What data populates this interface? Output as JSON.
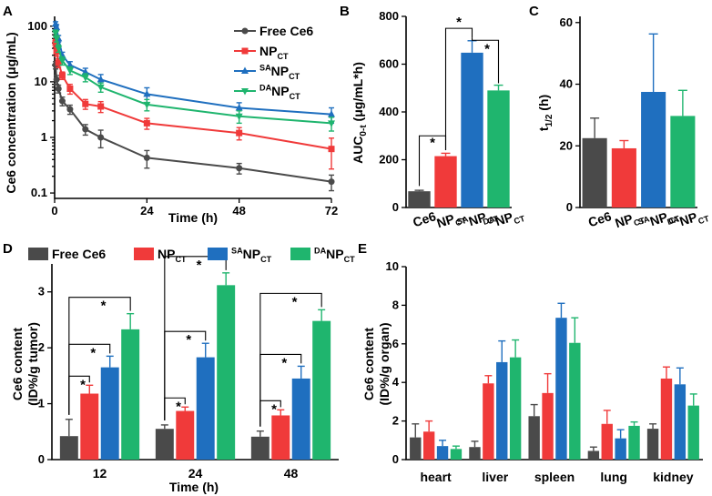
{
  "colors": {
    "gray": "#4a4a4a",
    "red": "#f03a3a",
    "blue": "#1f6fbf",
    "green": "#1fb56e"
  },
  "chart_data": [
    {
      "panel": "A",
      "type": "line",
      "yscale": "log",
      "xlabel": "Time (h)",
      "ylabel": "Ce6 concentration (μg/mL)",
      "xticks": [
        0,
        24,
        48,
        72
      ],
      "xlim": [
        0,
        72
      ],
      "yticks": [
        0.1,
        1,
        10,
        100
      ],
      "yticklabels": [
        "0.1",
        "1",
        "10",
        "100"
      ],
      "ylim": [
        0.08,
        150
      ],
      "x": [
        0.25,
        0.5,
        1,
        2,
        4,
        8,
        12,
        24,
        48,
        72
      ],
      "series": [
        {
          "name": "Free Ce6",
          "label_main": "Free Ce6",
          "label_sup": "",
          "label_sub": "",
          "color": "#4a4a4a",
          "marker": "circle",
          "values": [
            20,
            11,
            7.5,
            4.5,
            3.2,
            1.4,
            1.0,
            0.43,
            0.28,
            0.16
          ],
          "errors": [
            3,
            2,
            1.2,
            0.8,
            0.6,
            0.3,
            0.35,
            0.15,
            0.06,
            0.05
          ]
        },
        {
          "name": "NP_CT",
          "label_main": "NP",
          "label_sup": "",
          "label_sub": "CT",
          "color": "#f03a3a",
          "marker": "square",
          "values": [
            50,
            35,
            22,
            13,
            7.5,
            4.0,
            3.6,
            1.8,
            1.2,
            0.62
          ],
          "errors": [
            8,
            6,
            4,
            2,
            1.5,
            0.8,
            0.8,
            0.4,
            0.3,
            0.35
          ]
        },
        {
          "name": "SA_NP_CT",
          "label_main": "NP",
          "label_sup": "SA",
          "label_sub": "CT",
          "color": "#1f6fbf",
          "marker": "triangle-up",
          "values": [
            110,
            95,
            60,
            30,
            20,
            15,
            11,
            6.0,
            3.4,
            2.6
          ],
          "errors": [
            10,
            12,
            8,
            4,
            3,
            2.5,
            2.5,
            1.8,
            0.8,
            0.8
          ]
        },
        {
          "name": "DA_NP_CT",
          "label_main": "NP",
          "label_sup": "DA",
          "label_sub": "CT",
          "color": "#1fb56e",
          "marker": "triangle-down",
          "values": [
            75,
            60,
            40,
            24,
            16,
            12,
            8,
            3.9,
            2.4,
            1.8
          ],
          "errors": [
            10,
            8,
            6,
            4,
            2.5,
            2,
            1.5,
            0.9,
            0.6,
            0.5
          ]
        }
      ]
    },
    {
      "panel": "B",
      "type": "bar",
      "ylabel_main": "AUC",
      "ylabel_sub": "0-t",
      "ylabel_rest": " (μg/mL*h)",
      "categories": [
        "Ce6",
        "NP_CT",
        "SA_NP_CT",
        "DA_NP_CT"
      ],
      "cat_main": [
        "Ce6",
        "NP",
        "NP",
        "NP"
      ],
      "cat_sup": [
        "",
        "",
        "SA",
        "DA"
      ],
      "cat_sub": [
        "",
        "CT",
        "CT",
        "CT"
      ],
      "values": [
        68,
        215,
        648,
        490
      ],
      "errors": [
        4,
        12,
        50,
        22
      ],
      "yticks": [
        0,
        200,
        400,
        600,
        800
      ],
      "ylim": [
        0,
        800
      ],
      "significance": "*"
    },
    {
      "panel": "C",
      "type": "bar",
      "ylabel_main": "t",
      "ylabel_sub": "1/2",
      "ylabel_rest": " (h)",
      "categories": [
        "Ce6",
        "NP_CT",
        "SA_NP_CT",
        "DA_NP_CT"
      ],
      "cat_main": [
        "Ce6",
        "NP",
        "NP",
        "NP"
      ],
      "cat_sup": [
        "",
        "",
        "SA",
        "DA"
      ],
      "cat_sub": [
        "",
        "CT",
        "CT",
        "CT"
      ],
      "values": [
        22.5,
        19.2,
        37.5,
        29.7
      ],
      "errors": [
        6.5,
        2.5,
        18.8,
        8.3
      ],
      "yticks": [
        0,
        20,
        40,
        60
      ],
      "ylim": [
        0,
        62
      ]
    },
    {
      "panel": "D",
      "type": "bar",
      "xlabel": "Time (h)",
      "ylabel_line1": "Ce6 content",
      "ylabel_line2": "(ID%/g tumor)",
      "categories": [
        "12",
        "24",
        "48"
      ],
      "yticks": [
        0,
        1,
        2,
        3
      ],
      "ylim": [
        0,
        3.5
      ],
      "series": [
        {
          "name": "Free Ce6",
          "values": [
            0.42,
            0.55,
            0.41
          ],
          "errors": [
            0.3,
            0.07,
            0.1
          ]
        },
        {
          "name": "NP_CT",
          "values": [
            1.18,
            0.87,
            0.79
          ],
          "errors": [
            0.15,
            0.07,
            0.1
          ]
        },
        {
          "name": "SA_NP_CT",
          "values": [
            1.65,
            1.83,
            1.45
          ],
          "errors": [
            0.2,
            0.25,
            0.22
          ]
        },
        {
          "name": "DA_NP_CT",
          "values": [
            2.33,
            3.12,
            2.48
          ],
          "errors": [
            0.28,
            0.22,
            0.2
          ]
        }
      ],
      "significance": "*"
    },
    {
      "panel": "E",
      "type": "bar",
      "ylabel_line1": "Ce6 content",
      "ylabel_line2": "(ID%/g organ)",
      "categories": [
        "heart",
        "liver",
        "spleen",
        "lung",
        "kidney"
      ],
      "yticks": [
        0,
        2,
        4,
        6,
        8,
        10
      ],
      "ylim": [
        0,
        10
      ],
      "series": [
        {
          "name": "Free Ce6",
          "values": [
            1.15,
            0.65,
            2.25,
            0.45,
            1.6
          ],
          "errors": [
            0.7,
            0.3,
            0.6,
            0.2,
            0.25
          ]
        },
        {
          "name": "NP_CT",
          "values": [
            1.45,
            3.95,
            3.45,
            1.85,
            4.2
          ],
          "errors": [
            0.55,
            0.4,
            1.0,
            0.7,
            0.6
          ]
        },
        {
          "name": "SA_NP_CT",
          "values": [
            0.7,
            5.05,
            7.35,
            1.1,
            3.9
          ],
          "errors": [
            0.3,
            1.1,
            0.75,
            0.45,
            0.85
          ]
        },
        {
          "name": "DA_NP_CT",
          "values": [
            0.55,
            5.3,
            6.05,
            1.75,
            2.8
          ],
          "errors": [
            0.15,
            0.9,
            1.3,
            0.2,
            0.6
          ]
        }
      ]
    }
  ],
  "legendD": [
    {
      "main": "Free Ce6",
      "sup": "",
      "sub": ""
    },
    {
      "main": "NP",
      "sup": "",
      "sub": "CT"
    },
    {
      "main": "NP",
      "sup": "SA",
      "sub": "CT"
    },
    {
      "main": "NP",
      "sup": "DA",
      "sub": "CT"
    }
  ],
  "panel_labels": [
    "A",
    "B",
    "C",
    "D",
    "E"
  ]
}
